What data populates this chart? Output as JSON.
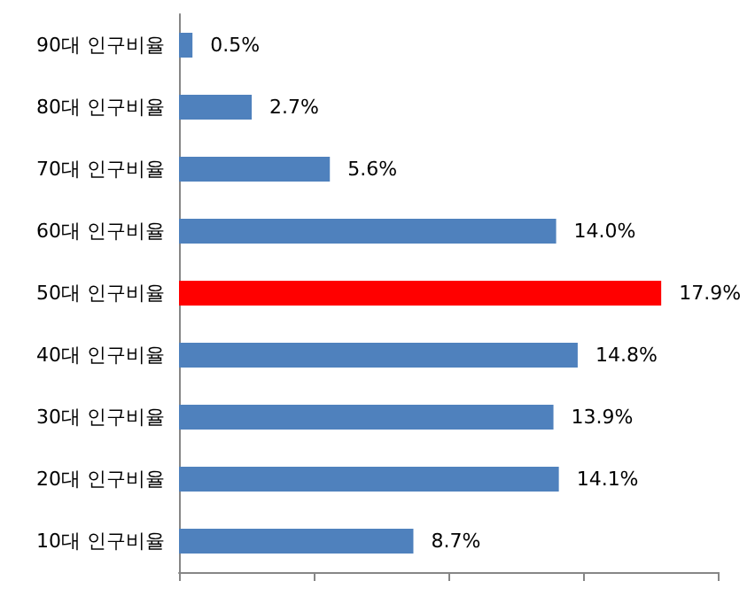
{
  "chart_data": {
    "type": "bar",
    "orientation": "horizontal",
    "categories": [
      "90대 인구비율",
      "80대 인구비율",
      "70대 인구비율",
      "60대 인구비율",
      "50대 인구비율",
      "40대 인구비율",
      "30대 인구비율",
      "20대 인구비율",
      "10대 인구비율"
    ],
    "values": [
      0.5,
      2.7,
      5.6,
      14.0,
      17.9,
      14.8,
      13.9,
      14.1,
      8.7
    ],
    "value_labels": [
      "0.5%",
      "2.7%",
      "5.6%",
      "14.0%",
      "17.9%",
      "14.8%",
      "13.9%",
      "14.1%",
      "8.7%"
    ],
    "colors": [
      "#4f81bd",
      "#4f81bd",
      "#4f81bd",
      "#4f81bd",
      "#ff0000",
      "#4f81bd",
      "#4f81bd",
      "#4f81bd",
      "#4f81bd"
    ],
    "xlim": [
      0,
      20
    ],
    "xticks": [
      {
        "value": 0,
        "label": null
      },
      {
        "value": 5,
        "label": null
      },
      {
        "value": 10,
        "label": null
      },
      {
        "value": 15,
        "label": null
      },
      {
        "value": 20,
        "label": null
      }
    ],
    "tick_labels": "y",
    "grid": false
  }
}
